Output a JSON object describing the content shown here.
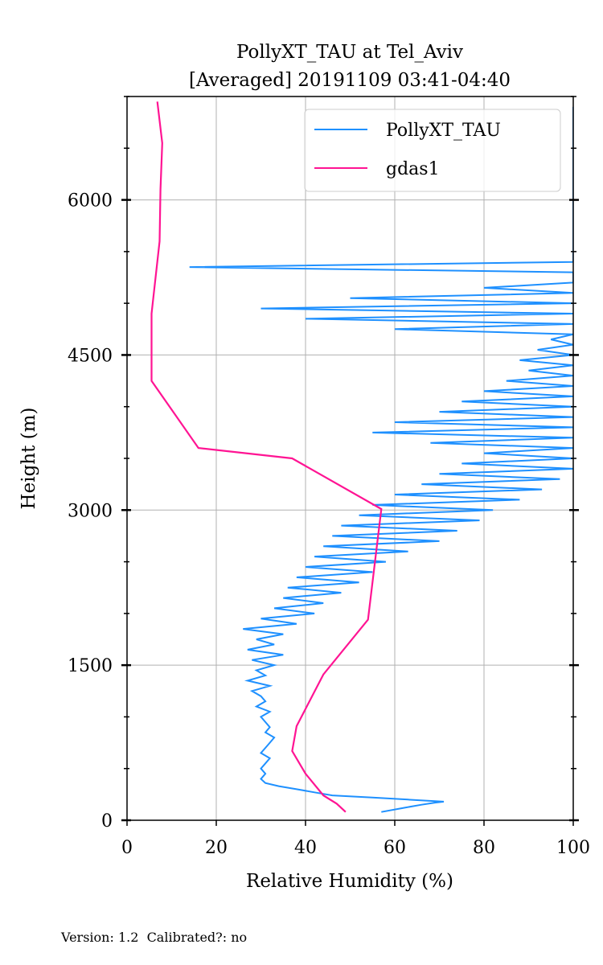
{
  "chart_data": {
    "type": "line",
    "title": "PollyXT_TAU at Tel_Aviv",
    "subtitle": "[Averaged] 20191109 03:41-04:40",
    "xlabel": "Relative Humidity (%)",
    "ylabel": "Height (m)",
    "xlim": [
      0,
      100
    ],
    "ylim": [
      0,
      7000
    ],
    "xticks": [
      0,
      20,
      40,
      60,
      80,
      100
    ],
    "yticks": [
      0,
      1500,
      3000,
      4500,
      6000
    ],
    "grid": true,
    "legend_position": "top-right",
    "series": [
      {
        "name": "PollyXT_TAU",
        "color": "#1E90FF",
        "points": [
          [
            57,
            80
          ],
          [
            62,
            120
          ],
          [
            66,
            150
          ],
          [
            69,
            170
          ],
          [
            71,
            180
          ],
          [
            63,
            200
          ],
          [
            55,
            220
          ],
          [
            46,
            240
          ],
          [
            42,
            270
          ],
          [
            38,
            300
          ],
          [
            34,
            330
          ],
          [
            31,
            360
          ],
          [
            30,
            400
          ],
          [
            31,
            450
          ],
          [
            30,
            500
          ],
          [
            31,
            550
          ],
          [
            32,
            600
          ],
          [
            30,
            650
          ],
          [
            31,
            700
          ],
          [
            32,
            750
          ],
          [
            33,
            800
          ],
          [
            31,
            850
          ],
          [
            32,
            900
          ],
          [
            31,
            950
          ],
          [
            30,
            1000
          ],
          [
            32,
            1050
          ],
          [
            29,
            1100
          ],
          [
            31,
            1150
          ],
          [
            30,
            1200
          ],
          [
            28,
            1250
          ],
          [
            32,
            1300
          ],
          [
            27,
            1350
          ],
          [
            31,
            1400
          ],
          [
            29,
            1450
          ],
          [
            33,
            1500
          ],
          [
            28,
            1550
          ],
          [
            35,
            1600
          ],
          [
            27,
            1650
          ],
          [
            33,
            1700
          ],
          [
            29,
            1750
          ],
          [
            35,
            1800
          ],
          [
            26,
            1850
          ],
          [
            38,
            1900
          ],
          [
            30,
            1950
          ],
          [
            42,
            2000
          ],
          [
            33,
            2050
          ],
          [
            44,
            2100
          ],
          [
            35,
            2150
          ],
          [
            48,
            2200
          ],
          [
            36,
            2250
          ],
          [
            52,
            2300
          ],
          [
            38,
            2350
          ],
          [
            55,
            2400
          ],
          [
            40,
            2450
          ],
          [
            58,
            2500
          ],
          [
            42,
            2550
          ],
          [
            63,
            2600
          ],
          [
            44,
            2650
          ],
          [
            70,
            2700
          ],
          [
            46,
            2750
          ],
          [
            74,
            2800
          ],
          [
            48,
            2850
          ],
          [
            79,
            2900
          ],
          [
            52,
            2950
          ],
          [
            82,
            3000
          ],
          [
            55,
            3050
          ],
          [
            88,
            3100
          ],
          [
            60,
            3150
          ],
          [
            93,
            3200
          ],
          [
            66,
            3250
          ],
          [
            97,
            3300
          ],
          [
            70,
            3350
          ],
          [
            100,
            3400
          ],
          [
            75,
            3450
          ],
          [
            100,
            3500
          ],
          [
            80,
            3550
          ],
          [
            100,
            3600
          ],
          [
            68,
            3650
          ],
          [
            100,
            3700
          ],
          [
            55,
            3750
          ],
          [
            100,
            3800
          ],
          [
            60,
            3850
          ],
          [
            100,
            3900
          ],
          [
            70,
            3950
          ],
          [
            100,
            4000
          ],
          [
            75,
            4050
          ],
          [
            100,
            4100
          ],
          [
            80,
            4150
          ],
          [
            100,
            4200
          ],
          [
            85,
            4250
          ],
          [
            100,
            4300
          ],
          [
            90,
            4350
          ],
          [
            100,
            4400
          ],
          [
            88,
            4450
          ],
          [
            100,
            4500
          ],
          [
            92,
            4550
          ],
          [
            100,
            4600
          ],
          [
            95,
            4650
          ],
          [
            100,
            4700
          ],
          [
            60,
            4750
          ],
          [
            100,
            4800
          ],
          [
            40,
            4850
          ],
          [
            100,
            4900
          ],
          [
            30,
            4950
          ],
          [
            100,
            5000
          ],
          [
            50,
            5050
          ],
          [
            100,
            5100
          ],
          [
            80,
            5150
          ],
          [
            100,
            5200
          ],
          [
            100,
            5300
          ],
          [
            14,
            5350
          ],
          [
            100,
            5400
          ],
          [
            100,
            5500
          ],
          [
            100,
            5600
          ],
          [
            100,
            5700
          ],
          [
            100,
            5800
          ],
          [
            100,
            5900
          ],
          [
            100,
            6000
          ],
          [
            100,
            6100
          ],
          [
            100,
            6200
          ],
          [
            100,
            6300
          ],
          [
            100,
            6400
          ],
          [
            100,
            6500
          ],
          [
            100,
            6600
          ],
          [
            100,
            6700
          ],
          [
            100,
            6800
          ],
          [
            100,
            6900
          ]
        ]
      },
      {
        "name": "gdas1",
        "color": "#FF1493",
        "points": [
          [
            49,
            80
          ],
          [
            47,
            160
          ],
          [
            44,
            240
          ],
          [
            40,
            450
          ],
          [
            37,
            670
          ],
          [
            38,
            910
          ],
          [
            44,
            1410
          ],
          [
            54,
            1940
          ],
          [
            57,
            3010
          ],
          [
            37,
            3500
          ],
          [
            16,
            3600
          ],
          [
            5.5,
            4250
          ],
          [
            5.5,
            4900
          ],
          [
            7.3,
            5600
          ],
          [
            7.5,
            6100
          ],
          [
            7.9,
            6550
          ],
          [
            6.8,
            6950
          ]
        ]
      }
    ]
  },
  "footer": {
    "text": "Version: 1.2  Calibrated?: no"
  }
}
